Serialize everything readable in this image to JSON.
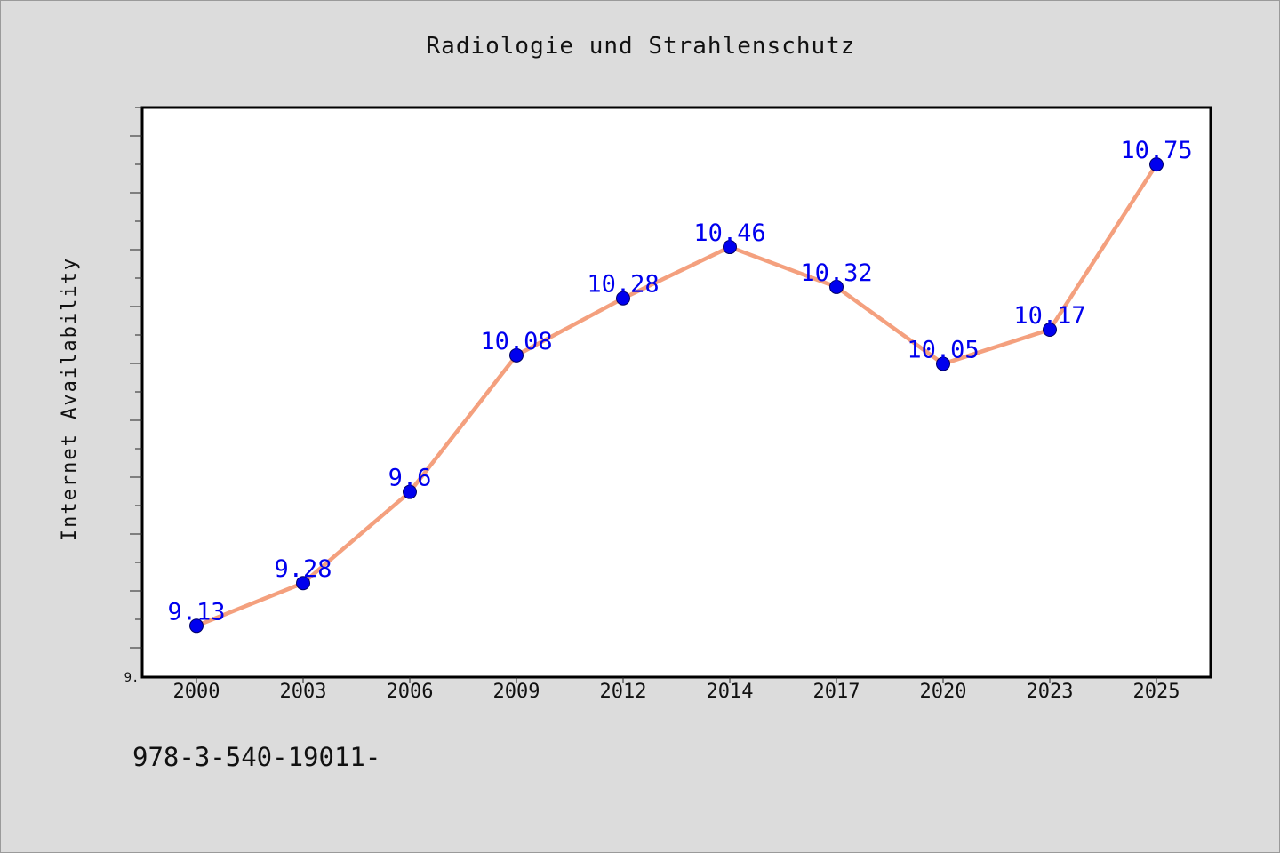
{
  "chart_data": {
    "type": "line",
    "title": "Radiologie und Strahlenschutz",
    "xlabel": "",
    "ylabel": "Internet Availability",
    "categories": [
      "2000",
      "2003",
      "2006",
      "2009",
      "2012",
      "2014",
      "2017",
      "2020",
      "2023",
      "2025"
    ],
    "series": [
      {
        "values": [
          9.13,
          9.28,
          9.6,
          10.08,
          10.28,
          10.46,
          10.32,
          10.05,
          10.17,
          10.75
        ]
      }
    ],
    "data_labels": [
      "9.13",
      "9.28",
      "9.6",
      "10.08",
      "10.28",
      "10.46",
      "10.32",
      "10.05",
      "10.17",
      "10.75"
    ],
    "y_tick_labels": [
      "9."
    ],
    "ylim": [
      8.95,
      10.95
    ],
    "grid": false,
    "legend": "none",
    "colors": {
      "line": "#f4a07e",
      "marker": "#0000ee",
      "data_label": "#0000ee",
      "plot_background": "#ffffff",
      "page_background": "#dcdcdc"
    }
  },
  "footer": {
    "code": "978-3-540-19011-"
  }
}
